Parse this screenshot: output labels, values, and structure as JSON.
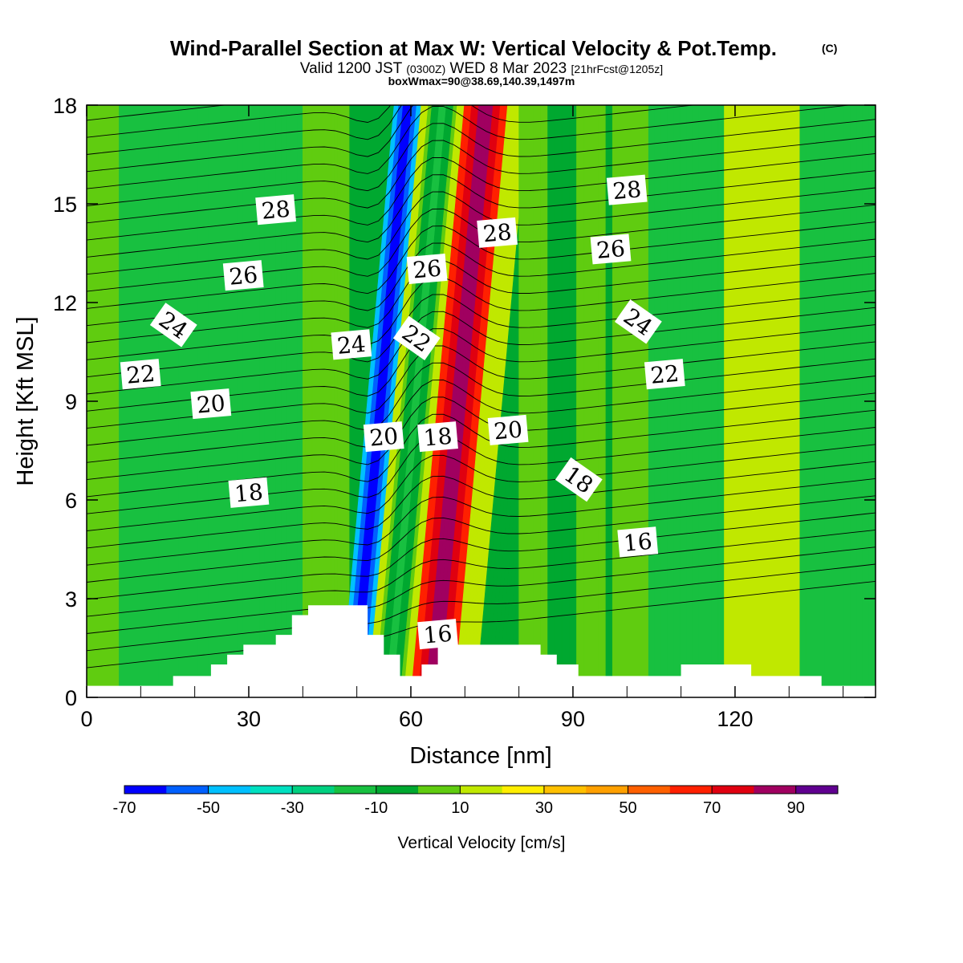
{
  "chart_data": {
    "type": "heatmap",
    "title": "Wind-Parallel Section at Max W: Vertical Velocity & Pot.Temp.",
    "title_mark": "(C)",
    "subtitle_parts": {
      "a": "Valid 1200 JST",
      "b": "(0300Z)",
      "c": "WED 8 Mar 2023",
      "d": "[21hrFcst@1205z]"
    },
    "box_text": "boxWmax=90@38.69,140.39,1497m",
    "xlabel": "Distance [nm]",
    "ylabel": "Height [Kft MSL]",
    "xlim": [
      0,
      146
    ],
    "ylim": [
      0,
      18
    ],
    "xticks": [
      0,
      30,
      60,
      90,
      120
    ],
    "yticks": [
      0,
      3,
      6,
      9,
      12,
      15,
      18
    ],
    "colorbar": {
      "label": "Vertical Velocity [cm/s]",
      "ticks": [
        "-70",
        "-50",
        "-30",
        "-10",
        "10",
        "30",
        "50",
        "70",
        "90"
      ],
      "levels": [
        -70,
        -60,
        -50,
        -40,
        -30,
        -20,
        -10,
        0,
        10,
        20,
        30,
        40,
        50,
        60,
        70,
        80,
        90
      ],
      "colors": [
        "#0000ff",
        "#0060ff",
        "#00c0ff",
        "#00e0c0",
        "#00d080",
        "#18c040",
        "#00a830",
        "#60cc10",
        "#c0e800",
        "#ffee00",
        "#ffc000",
        "#ffa000",
        "#ff6000",
        "#ff2000",
        "#e00010",
        "#a00060",
        "#600090"
      ]
    },
    "vertical_velocity_bands": [
      {
        "x": [
          0,
          6,
          146
        ],
        "w": [
          -5,
          -15,
          10
        ]
      },
      {
        "x": [
          6,
          28
        ],
        "w": [
          -15,
          -10
        ]
      },
      {
        "x": [
          28,
          40
        ],
        "w": [
          -20,
          -10
        ]
      },
      {
        "x": [
          40,
          47
        ],
        "w": [
          0,
          5
        ]
      },
      {
        "x": [
          47,
          52
        ],
        "w": [
          -70,
          -40
        ]
      },
      {
        "x": [
          52,
          60
        ],
        "w": [
          -20,
          20
        ]
      },
      {
        "x": [
          60,
          68
        ],
        "w": [
          90,
          60
        ]
      },
      {
        "x": [
          68,
          72
        ],
        "w": [
          10,
          20
        ]
      },
      {
        "x": [
          72,
          80
        ],
        "w": [
          -10,
          -5
        ]
      },
      {
        "x": [
          80,
          96
        ],
        "w": [
          -5,
          10
        ]
      },
      {
        "x": [
          104,
          118
        ],
        "w": [
          -15,
          -10
        ]
      },
      {
        "x": [
          118,
          132
        ],
        "w": [
          10,
          20
        ]
      },
      {
        "x": [
          132,
          146
        ],
        "w": [
          -15,
          -10
        ]
      }
    ],
    "theta_contour_labels": [
      {
        "text": "28",
        "x": 35,
        "y": 14.8
      },
      {
        "text": "26",
        "x": 29,
        "y": 12.8
      },
      {
        "text": "24",
        "x": 16,
        "y": 11.3
      },
      {
        "text": "22",
        "x": 10,
        "y": 9.8
      },
      {
        "text": "20",
        "x": 23,
        "y": 8.9
      },
      {
        "text": "18",
        "x": 30,
        "y": 6.2
      },
      {
        "text": "24",
        "x": 49,
        "y": 10.7
      },
      {
        "text": "22",
        "x": 61,
        "y": 10.9
      },
      {
        "text": "26",
        "x": 63,
        "y": 13.0
      },
      {
        "text": "28",
        "x": 76,
        "y": 14.1
      },
      {
        "text": "28",
        "x": 100,
        "y": 15.4
      },
      {
        "text": "26",
        "x": 97,
        "y": 13.6
      },
      {
        "text": "24",
        "x": 102,
        "y": 11.4
      },
      {
        "text": "22",
        "x": 107,
        "y": 9.8
      },
      {
        "text": "20",
        "x": 55,
        "y": 7.9
      },
      {
        "text": "18",
        "x": 65,
        "y": 7.9
      },
      {
        "text": "20",
        "x": 78,
        "y": 8.1
      },
      {
        "text": "18",
        "x": 91,
        "y": 6.6
      },
      {
        "text": "16",
        "x": 102,
        "y": 4.7
      },
      {
        "text": "16",
        "x": 65,
        "y": 1.9
      }
    ],
    "terrain": [
      [
        0,
        0.35
      ],
      [
        16,
        0.35
      ],
      [
        16,
        0.65
      ],
      [
        23,
        0.65
      ],
      [
        23,
        1.0
      ],
      [
        26,
        1.0
      ],
      [
        26,
        1.3
      ],
      [
        29,
        1.3
      ],
      [
        29,
        1.6
      ],
      [
        35,
        1.6
      ],
      [
        35,
        1.9
      ],
      [
        38,
        1.9
      ],
      [
        38,
        2.5
      ],
      [
        41,
        2.5
      ],
      [
        41,
        2.8
      ],
      [
        52,
        2.8
      ],
      [
        52,
        1.9
      ],
      [
        55,
        1.9
      ],
      [
        55,
        1.3
      ],
      [
        58,
        1.3
      ],
      [
        58,
        0.65
      ],
      [
        62,
        0.65
      ],
      [
        62,
        1.0
      ],
      [
        65,
        1.0
      ],
      [
        65,
        1.6
      ],
      [
        84,
        1.6
      ],
      [
        84,
        1.3
      ],
      [
        87,
        1.3
      ],
      [
        87,
        1.0
      ],
      [
        91,
        1.0
      ],
      [
        91,
        0.65
      ],
      [
        110,
        0.65
      ],
      [
        110,
        1.0
      ],
      [
        123,
        1.0
      ],
      [
        123,
        0.65
      ],
      [
        136,
        0.65
      ],
      [
        136,
        0.35
      ],
      [
        146,
        0.35
      ]
    ]
  }
}
